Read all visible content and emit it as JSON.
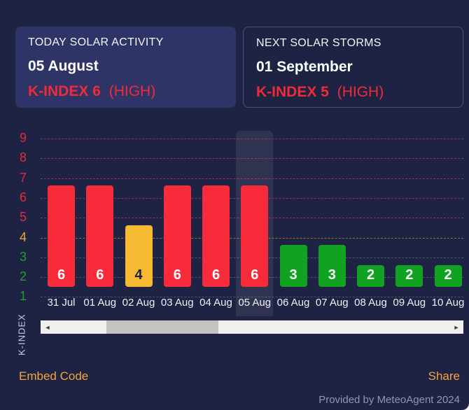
{
  "cards": {
    "today": {
      "title": "TODAY SOLAR ACTIVITY",
      "date": "05 August",
      "kindex_label": "K-INDEX 6",
      "level_label": "(HIGH)"
    },
    "next": {
      "title": "NEXT SOLAR STORMS",
      "date": "01 September",
      "kindex_label": "K-INDEX 5",
      "level_label": "(HIGH)"
    }
  },
  "chart_data": {
    "type": "bar",
    "title": "",
    "xlabel": "",
    "ylabel": "K-INDEX",
    "categories": [
      "31 Jul",
      "01 Aug",
      "02 Aug",
      "03 Aug",
      "04 Aug",
      "05 Aug",
      "06 Aug",
      "07 Aug",
      "08 Aug",
      "09 Aug",
      "10 Aug"
    ],
    "values": [
      6,
      6,
      4,
      6,
      6,
      6,
      3,
      3,
      2,
      2,
      2
    ],
    "highlighted_index": 5,
    "yticks": [
      1,
      2,
      3,
      4,
      5,
      6,
      7,
      8,
      9
    ],
    "ylim": [
      0,
      9
    ],
    "grid": "horizontal-dashed",
    "legend": "none",
    "color_rule": "value >= 5 red (high), value == 4 yellow (moderate), value <= 3 green (low)",
    "bar_colors": {
      "red": "#f82b3a",
      "yellow": "#f6b932",
      "green": "#12a222"
    },
    "bar_label_colors": {
      "red": "#ffffff",
      "yellow": "#1c2240",
      "green": "#ffffff"
    },
    "tick_colors": {
      "red": "#e32b3d",
      "yellow": "#e2ac35",
      "green": "#1ea12c"
    },
    "gridline_colors": {
      "red": "rgba(235,70,90,0.55)",
      "yellow": "rgba(230,180,60,0.55)",
      "green": "rgba(190,200,205,0.30)"
    }
  },
  "scrollbar": {
    "left_arrow": "◄",
    "right_arrow": "►"
  },
  "footer": {
    "embed_label": "Embed Code",
    "share_label": "Share",
    "provider": "Provided by MeteoAgent 2024",
    "link_color": "#f2a63d"
  }
}
